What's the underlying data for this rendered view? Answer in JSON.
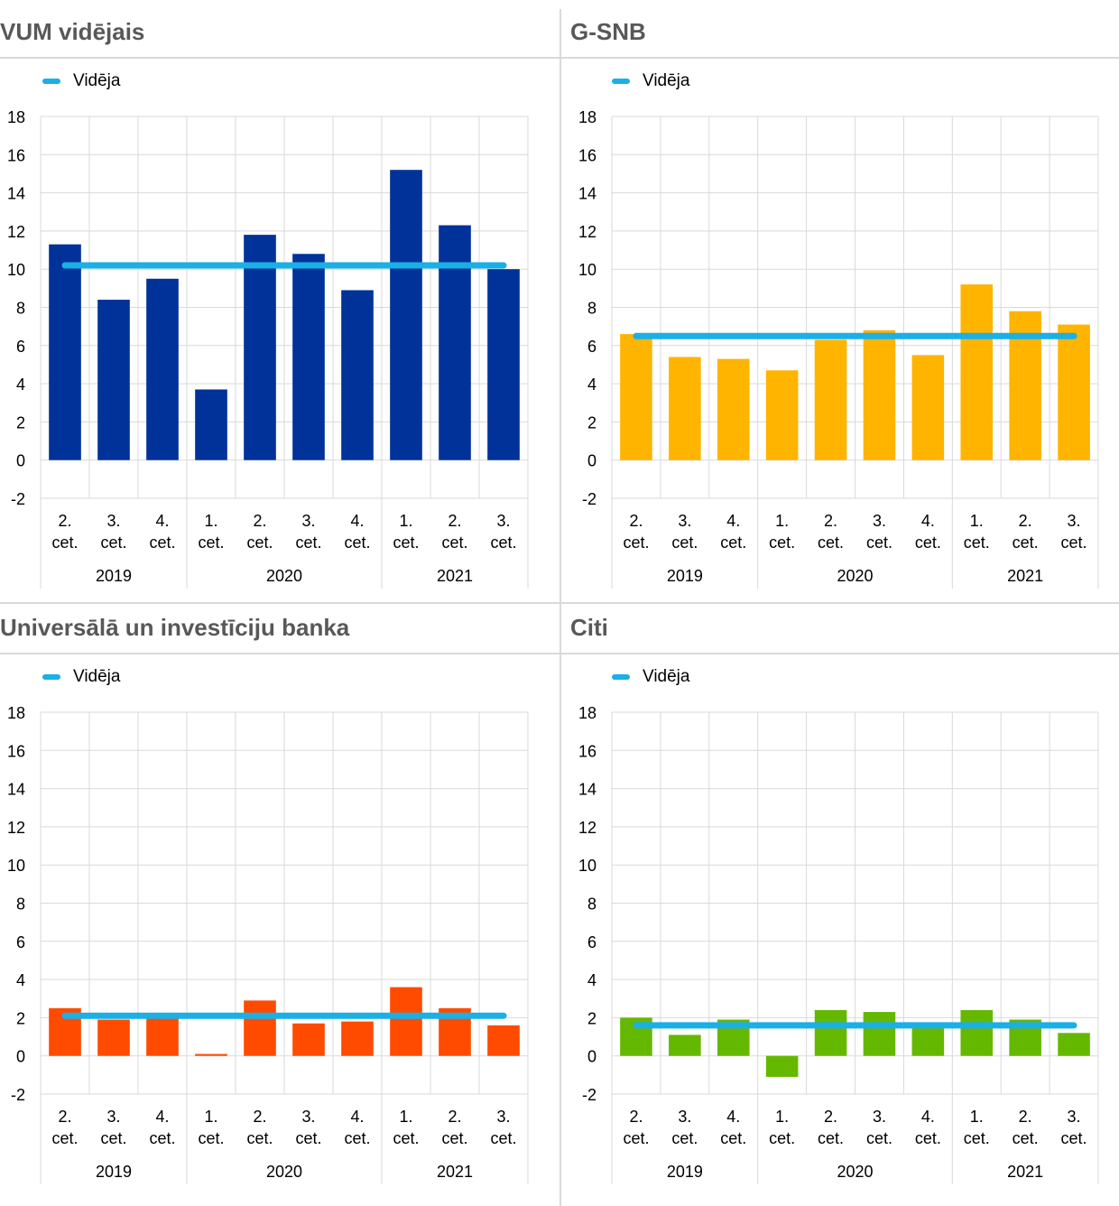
{
  "colors": {
    "average_line": "#1ab0e6",
    "grid": "#d9d9d9",
    "axis_text": "#000000",
    "title_text": "#585858"
  },
  "legend_label": "Vidēja",
  "x_categories": [
    [
      "2.",
      "cet."
    ],
    [
      "3.",
      "cet."
    ],
    [
      "4.",
      "cet."
    ],
    [
      "1.",
      "cet."
    ],
    [
      "2.",
      "cet."
    ],
    [
      "3.",
      "cet."
    ],
    [
      "4.",
      "cet."
    ],
    [
      "1.",
      "cet."
    ],
    [
      "2.",
      "cet."
    ],
    [
      "3.",
      "cet."
    ]
  ],
  "x_groups": [
    {
      "label": "2019",
      "count": 3
    },
    {
      "label": "2020",
      "count": 4
    },
    {
      "label": "2021",
      "count": 3
    }
  ],
  "chart_data": [
    {
      "type": "bar",
      "title": "VUM vidējais",
      "bar_color": "#003299",
      "ylim": [
        -2,
        18
      ],
      "yticks": [
        -2,
        0,
        2,
        4,
        6,
        8,
        10,
        12,
        14,
        16,
        18
      ],
      "grid": true,
      "legend": "top-left",
      "series": [
        {
          "values": [
            11.3,
            8.4,
            9.5,
            3.7,
            11.8,
            10.8,
            8.9,
            15.2,
            12.3,
            10.0
          ]
        },
        {
          "name": "Vidēja",
          "kind": "line",
          "values": [
            10.2,
            10.2,
            10.2,
            10.2,
            10.2,
            10.2,
            10.2,
            10.2,
            10.2,
            10.2
          ]
        }
      ]
    },
    {
      "type": "bar",
      "title": "G-SNB",
      "bar_color": "#ffb400",
      "ylim": [
        -2,
        18
      ],
      "yticks": [
        -2,
        0,
        2,
        4,
        6,
        8,
        10,
        12,
        14,
        16,
        18
      ],
      "grid": true,
      "legend": "top-left",
      "series": [
        {
          "values": [
            6.6,
            5.4,
            5.3,
            4.7,
            6.3,
            6.8,
            5.5,
            9.2,
            7.8,
            7.1
          ]
        },
        {
          "name": "Vidēja",
          "kind": "line",
          "values": [
            6.5,
            6.5,
            6.5,
            6.5,
            6.5,
            6.5,
            6.5,
            6.5,
            6.5,
            6.5
          ]
        }
      ]
    },
    {
      "type": "bar",
      "title": "Universālā un investīciju banka",
      "bar_color": "#ff4b00",
      "ylim": [
        -2,
        18
      ],
      "yticks": [
        -2,
        0,
        2,
        4,
        6,
        8,
        10,
        12,
        14,
        16,
        18
      ],
      "grid": true,
      "legend": "top-left",
      "series": [
        {
          "values": [
            2.5,
            1.9,
            2.0,
            0.1,
            2.9,
            1.7,
            1.8,
            3.6,
            2.5,
            1.6
          ]
        },
        {
          "name": "Vidēja",
          "kind": "line",
          "values": [
            2.1,
            2.1,
            2.1,
            2.1,
            2.1,
            2.1,
            2.1,
            2.1,
            2.1,
            2.1
          ]
        }
      ]
    },
    {
      "type": "bar",
      "title": "Citi",
      "bar_color": "#65b800",
      "ylim": [
        -2,
        18
      ],
      "yticks": [
        -2,
        0,
        2,
        4,
        6,
        8,
        10,
        12,
        14,
        16,
        18
      ],
      "grid": true,
      "legend": "top-left",
      "series": [
        {
          "values": [
            2.0,
            1.1,
            1.9,
            -1.1,
            2.4,
            2.3,
            1.6,
            2.4,
            1.9,
            1.2
          ]
        },
        {
          "name": "Vidēja",
          "kind": "line",
          "values": [
            1.6,
            1.6,
            1.6,
            1.6,
            1.6,
            1.6,
            1.6,
            1.6,
            1.6,
            1.6
          ]
        }
      ]
    }
  ]
}
